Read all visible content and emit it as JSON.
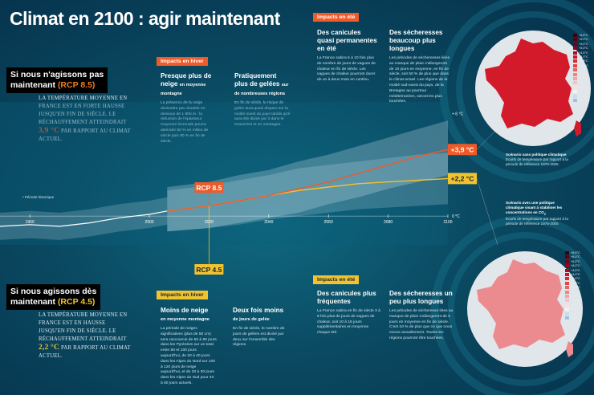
{
  "title": "Climat en 2100 : agir maintenant",
  "scenario_high": {
    "heading_1": "Si nous n'agissons pas",
    "heading_2": "maintenant",
    "rcp": "(RCP 8.5)",
    "text_1": "La température moyenne en France est en forte hausse jusqu'en fin de siècle. Le réchauffement atteindrait",
    "value": "3,9 °C",
    "text_2": "par rapport au climat actuel."
  },
  "scenario_low": {
    "heading_1": "Si nous agissons dès",
    "heading_2": "maintenant",
    "rcp": "(RCP 4.5)",
    "text_1": "La température moyenne en France est en hausse jusqu'en fin de siècle. Le réchauffement atteindrait",
    "value": "2,2 °C",
    "text_2": "par rapport au climat actuel."
  },
  "impacts": {
    "winter_high": {
      "tag": "Impacts en hiver",
      "col1_head": "Presque plus de neige",
      "col1_sub": "en moyenne montagne",
      "col1_text": "La présence de la neige deviendra peu durable en dessous de 1 800 m : la réduction de l'épaisseur moyenne hivernale pourra atteindre 50 % en milieu de siècle puis 80 % en fin de siècle.",
      "col2_head": "Pratiquement plus de gelées",
      "col2_sub": "sur de nombreuses régions",
      "col2_text": "En fin de siècle, le risque de gelée aura quasi disparu sur la moitié ouest du pays tandis qu'il aura été divisé par 3 dans le Grand Est et en montagne."
    },
    "summer_high": {
      "tag": "Impacts en été",
      "col1_head": "Des canicules quasi permanentes en été",
      "col1_text": "La France subira 5 à 10 fois plus de nombre de jours de vagues de chaleur en fin de siècle. Les vagues de chaleur pourront durer de un à deux mois en continu.",
      "col2_head": "Des sécheresses beaucoup plus longues",
      "col2_text": "Les périodes de sécheresses liées au manque de pluie s'allongeront de 10 jours en moyenne, en fin de siècle, soit 50 % de plus que dans le climat actuel. Les régions de la moitié sud-ouest du pays, de la Bretagne au pourtour méditerranéen, seront les plus touchées."
    },
    "winter_low": {
      "tag": "Impacts en hiver",
      "col1_head": "Moins de neige",
      "col1_sub": "en moyenne montagne",
      "col1_text": "La période de neiges significatives (plus de 50 cm) sera raccourcie de 50 à 60 jours dans les Pyrénées sur un total entre 80 et 100 jours aujourd'hui, de 20 à 40 jours dans les Alpes du Nord sur 100 à 120 jours de neige aujourd'hui, et de 20 à 30 jours dans les Alpes du Sud pour 40 à 50 jours actuels.",
      "col2_head": "Deux fois moins",
      "col2_sub": "de jours de gelée",
      "col2_text": "En fin de siècle, le nombre de jours de gelées est divisé par deux sur l'ensemble des régions."
    },
    "summer_low": {
      "tag": "Impacts en été",
      "col1_head": "Des canicules plus fréquentes",
      "col1_text": "La France subira en fin de siècle 3 à 6 fois plus de jours de vagues de chaleur, soit 10 à 15 jours supplémentaires en moyenne chaque été.",
      "col2_head": "Des sécheresses un peu plus longues",
      "col2_text": "Les périodes de sécheresse liées au manque de pluie s'allongeront de 5 jours en moyenne en fin de siècle. C'est 10 % de plus que ce que nous vivons actuellement. Toutes les régions pourront être touchées."
    }
  },
  "maps": {
    "high_caption_title": "Scénario sans politique climatique",
    "high_caption_text": "Écarts de température par rapport à la période de référence 1976-2005",
    "low_caption_title": "Scénario avec une politique climatique visant à stabiliser les concentrations en CO",
    "low_caption_sub": "2",
    "low_caption_text": "Écarts de température par rapport à la période de référence 1976-2005",
    "legend": [
      "+6,5°C",
      "+6,0°C",
      "+5,5°C",
      "+5,0°C",
      "+4,5°C",
      "+4,0°C",
      "+3,5°C",
      "+3,0°C",
      "+2,5°C",
      "+2,0°C",
      "+1,5°C",
      "+1,0°C",
      "+0,5°C",
      "0°C",
      "-0,5°C",
      "-1,0°C"
    ],
    "legend_colors": [
      "#3d0008",
      "#5a000e",
      "#7a0014",
      "#95001a",
      "#b00820",
      "#c4182a",
      "#d42a36",
      "#e04646",
      "#e86464",
      "#ef8484",
      "#f4a4a4",
      "#f8c2c2",
      "#fbdede",
      "#f2f2f2",
      "#c9dcee",
      "#9fc2e4"
    ],
    "high_color": "#d31a2a",
    "low_color": "#ec8b8f"
  },
  "colors": {
    "rcp85": "#f05a28",
    "rcp45": "#f3c22f",
    "history": "#ffffff",
    "background": "#0a4a62"
  },
  "chart_data": {
    "type": "line",
    "title": "",
    "xlabel": "",
    "ylabel": "",
    "x_ticks": [
      1960,
      2000,
      2020,
      2040,
      2060,
      2080,
      2100
    ],
    "xlim": [
      1950,
      2100
    ],
    "ylim": [
      -1.5,
      6.5
    ],
    "y_ticks": [
      {
        "value": 0,
        "label": "0 °C"
      },
      {
        "value": 6,
        "label": "+ 6 °C"
      }
    ],
    "history_label": "Période historique",
    "series": [
      {
        "name": "RCP 8.5",
        "end_label": "+3,9 °C",
        "x": [
          2006,
          2020,
          2030,
          2040,
          2050,
          2060,
          2070,
          2080,
          2090,
          2100
        ],
        "values": [
          0.3,
          0.6,
          0.9,
          1.2,
          1.6,
          2.0,
          2.5,
          3.0,
          3.5,
          3.9
        ],
        "band_low": [
          -0.9,
          -0.7,
          -0.4,
          -0.1,
          0.2,
          0.7,
          1.1,
          1.6,
          2.0,
          2.4
        ],
        "band_high": [
          1.7,
          2.0,
          2.4,
          2.7,
          3.2,
          3.6,
          4.1,
          4.6,
          5.1,
          5.6
        ]
      },
      {
        "name": "RCP 4.5",
        "end_label": "+2,2 °C",
        "x": [
          2006,
          2020,
          2030,
          2040,
          2050,
          2060,
          2070,
          2080,
          2090,
          2100
        ],
        "values": [
          0.3,
          0.6,
          0.9,
          1.2,
          1.5,
          1.7,
          1.9,
          2.0,
          2.1,
          2.2
        ],
        "band_low": [
          -0.9,
          -0.7,
          -0.5,
          -0.2,
          0.0,
          0.2,
          0.4,
          0.5,
          0.6,
          0.7
        ],
        "band_high": [
          1.5,
          1.8,
          2.1,
          2.4,
          2.8,
          3.0,
          3.2,
          3.4,
          3.6,
          3.7
        ]
      },
      {
        "name": "Période historique",
        "x": [
          1950,
          1960,
          1970,
          1980,
          1990,
          2000,
          2006
        ],
        "values": [
          -0.6,
          -0.5,
          -0.6,
          -0.4,
          -0.1,
          0.1,
          0.3
        ],
        "band_low": [
          -1.4,
          -1.3,
          -1.4,
          -1.2,
          -0.9,
          -0.7,
          -0.5
        ],
        "band_high": [
          0.2,
          0.3,
          0.2,
          0.4,
          0.7,
          0.9,
          1.1
        ]
      }
    ],
    "grid": false,
    "legend": "none"
  }
}
